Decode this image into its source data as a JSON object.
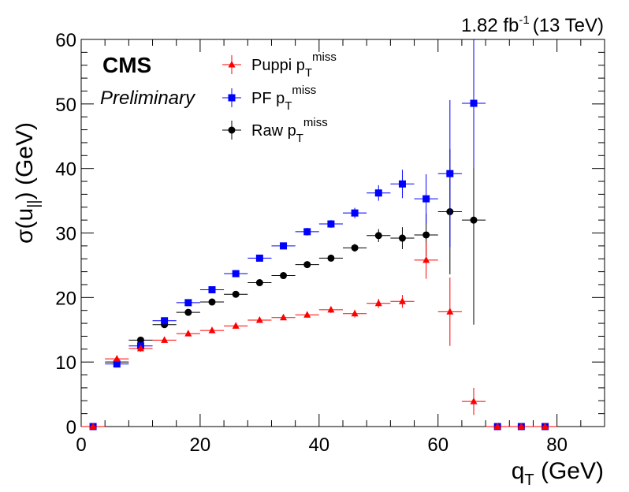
{
  "experiment": "CMS",
  "status": "Preliminary",
  "lumi_text": "1.82 fb",
  "lumi_sup": "-1",
  "energy_text": "(13 TeV)",
  "colors": {
    "puppi": "#ff0000",
    "pf": "#0000ff",
    "raw": "#000000"
  },
  "chart_data": {
    "type": "scatter",
    "xlabel": {
      "main": "q",
      "sub": "T",
      "unit": " (GeV)"
    },
    "ylabel": {
      "main": "σ(u",
      "sub": "||",
      "unit": ") (GeV)"
    },
    "xlim": [
      0,
      88
    ],
    "ylim": [
      0,
      60
    ],
    "xticks": [
      0,
      20,
      40,
      60,
      80
    ],
    "yticks": [
      0,
      10,
      20,
      30,
      40,
      50,
      60
    ],
    "legend_position": "top-left",
    "series": [
      {
        "key": "puppi",
        "name": "Puppi p",
        "name_sub": "T",
        "name_sup": "miss",
        "marker": "triangle",
        "points": [
          {
            "x": 2,
            "y": 0,
            "err": 0
          },
          {
            "x": 6,
            "y": 10.5,
            "err": 0.4
          },
          {
            "x": 10,
            "y": 12.1,
            "err": 0.5
          },
          {
            "x": 14,
            "y": 13.4,
            "err": 0.4
          },
          {
            "x": 18,
            "y": 14.4,
            "err": 0.4
          },
          {
            "x": 22,
            "y": 14.9,
            "err": 0.4
          },
          {
            "x": 26,
            "y": 15.6,
            "err": 0.4
          },
          {
            "x": 30,
            "y": 16.5,
            "err": 0.4
          },
          {
            "x": 34,
            "y": 16.9,
            "err": 0.4
          },
          {
            "x": 38,
            "y": 17.3,
            "err": 0.4
          },
          {
            "x": 42,
            "y": 18.1,
            "err": 0.5
          },
          {
            "x": 46,
            "y": 17.5,
            "err": 0.6
          },
          {
            "x": 50,
            "y": 19.1,
            "err": 0.7
          },
          {
            "x": 54,
            "y": 19.4,
            "err": 1.0
          },
          {
            "x": 58,
            "y": 25.8,
            "err": 2.9
          },
          {
            "x": 62,
            "y": 17.8,
            "err": 5.3
          },
          {
            "x": 66,
            "y": 3.9,
            "err": 2.1
          },
          {
            "x": 70,
            "y": 0,
            "err": 0
          },
          {
            "x": 74,
            "y": 0,
            "err": 0
          },
          {
            "x": 78,
            "y": 0,
            "err": 0
          }
        ]
      },
      {
        "key": "pf",
        "name": "PF p",
        "name_sub": "T",
        "name_sup": "miss",
        "marker": "square",
        "points": [
          {
            "x": 2,
            "y": 0,
            "err": 0
          },
          {
            "x": 6,
            "y": 9.7,
            "err": 0.4
          },
          {
            "x": 10,
            "y": 12.5,
            "err": 0.5
          },
          {
            "x": 14,
            "y": 16.4,
            "err": 0.5
          },
          {
            "x": 18,
            "y": 19.2,
            "err": 0.5
          },
          {
            "x": 22,
            "y": 21.2,
            "err": 0.5
          },
          {
            "x": 26,
            "y": 23.7,
            "err": 0.5
          },
          {
            "x": 30,
            "y": 26.1,
            "err": 0.5
          },
          {
            "x": 34,
            "y": 28.0,
            "err": 0.5
          },
          {
            "x": 38,
            "y": 30.2,
            "err": 0.6
          },
          {
            "x": 42,
            "y": 31.4,
            "err": 0.6
          },
          {
            "x": 46,
            "y": 33.1,
            "err": 0.8
          },
          {
            "x": 50,
            "y": 36.2,
            "err": 1.2
          },
          {
            "x": 54,
            "y": 37.6,
            "err": 2.2
          },
          {
            "x": 58,
            "y": 35.3,
            "err": 3.8
          },
          {
            "x": 62,
            "y": 39.2,
            "err": 11.4
          },
          {
            "x": 66,
            "y": 50.1,
            "err": 10.0
          },
          {
            "x": 70,
            "y": 0,
            "err": 0
          },
          {
            "x": 74,
            "y": 0,
            "err": 0
          },
          {
            "x": 78,
            "y": 0,
            "err": 0
          }
        ]
      },
      {
        "key": "raw",
        "name": "Raw p",
        "name_sub": "T",
        "name_sup": "miss",
        "marker": "circle",
        "points": [
          {
            "x": 2,
            "y": 0,
            "err": 0
          },
          {
            "x": 6,
            "y": 10.0,
            "err": 0.4
          },
          {
            "x": 10,
            "y": 13.4,
            "err": 0.5
          },
          {
            "x": 14,
            "y": 15.8,
            "err": 0.5
          },
          {
            "x": 18,
            "y": 17.7,
            "err": 0.4
          },
          {
            "x": 22,
            "y": 19.3,
            "err": 0.4
          },
          {
            "x": 26,
            "y": 20.5,
            "err": 0.4
          },
          {
            "x": 30,
            "y": 22.3,
            "err": 0.4
          },
          {
            "x": 34,
            "y": 23.4,
            "err": 0.4
          },
          {
            "x": 38,
            "y": 25.1,
            "err": 0.5
          },
          {
            "x": 42,
            "y": 26.1,
            "err": 0.5
          },
          {
            "x": 46,
            "y": 27.7,
            "err": 0.6
          },
          {
            "x": 50,
            "y": 29.6,
            "err": 1.0
          },
          {
            "x": 54,
            "y": 29.2,
            "err": 1.7
          },
          {
            "x": 58,
            "y": 29.7,
            "err": 3.3
          },
          {
            "x": 62,
            "y": 33.3,
            "err": 9.7
          },
          {
            "x": 66,
            "y": 32.0,
            "err": 16.2
          },
          {
            "x": 70,
            "y": 0,
            "err": 0
          },
          {
            "x": 74,
            "y": 0,
            "err": 0
          },
          {
            "x": 78,
            "y": 0,
            "err": 0
          }
        ]
      }
    ]
  }
}
